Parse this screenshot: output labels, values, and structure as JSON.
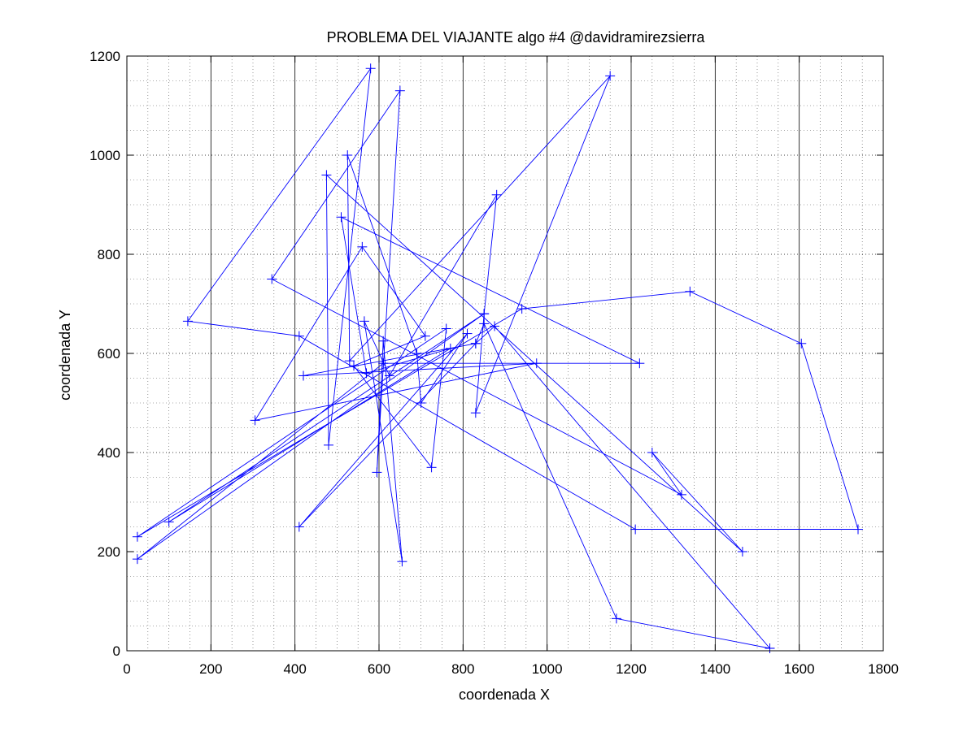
{
  "chart_data": {
    "type": "line",
    "title": "PROBLEMA DEL VIAJANTE algo #4 @davidramirezsierra",
    "xlabel": "coordenada X",
    "ylabel": "coordenada Y",
    "xlim": [
      0,
      1800
    ],
    "ylim": [
      0,
      1200
    ],
    "xticks": [
      0,
      200,
      400,
      600,
      800,
      1000,
      1200,
      1400,
      1600,
      1800
    ],
    "yticks": [
      0,
      200,
      400,
      600,
      800,
      1000,
      1200
    ],
    "xtick_labels": [
      "0",
      "200",
      "400",
      "600",
      "800",
      "1000",
      "1200",
      "1400",
      "1600",
      "1800"
    ],
    "ytick_labels": [
      "0",
      "200",
      "400",
      "600",
      "800",
      "1000",
      "1200"
    ],
    "grid": {
      "major": true,
      "minor": true
    },
    "marker": "+",
    "series": [
      {
        "color": "#0000ff",
        "points": [
          [
            1530,
            5
          ],
          [
            1165,
            65
          ],
          [
            850,
            660
          ],
          [
            830,
            620
          ],
          [
            420,
            555
          ],
          [
            975,
            580
          ],
          [
            305,
            465
          ],
          [
            560,
            815
          ],
          [
            710,
            635
          ],
          [
            540,
            575
          ],
          [
            725,
            370
          ],
          [
            760,
            650
          ],
          [
            25,
            230
          ],
          [
            940,
            690
          ],
          [
            1340,
            725
          ],
          [
            1605,
            620
          ],
          [
            1740,
            245
          ],
          [
            1210,
            245
          ],
          [
            410,
            635
          ],
          [
            145,
            665
          ],
          [
            580,
            1175
          ],
          [
            480,
            415
          ],
          [
            475,
            960
          ],
          [
            1465,
            200
          ],
          [
            1250,
            400
          ],
          [
            1320,
            315
          ],
          [
            345,
            750
          ],
          [
            650,
            1130
          ],
          [
            595,
            360
          ],
          [
            610,
            625
          ],
          [
            655,
            180
          ],
          [
            565,
            665
          ],
          [
            625,
            555
          ],
          [
            880,
            920
          ],
          [
            850,
            680
          ],
          [
            25,
            185
          ],
          [
            610,
            580
          ],
          [
            1220,
            580
          ],
          [
            510,
            875
          ],
          [
            570,
            560
          ],
          [
            770,
            610
          ],
          [
            100,
            260
          ],
          [
            850,
            680
          ],
          [
            830,
            480
          ],
          [
            1150,
            1160
          ],
          [
            530,
            585
          ],
          [
            525,
            1000
          ],
          [
            690,
            600
          ],
          [
            700,
            500
          ],
          [
            810,
            640
          ],
          [
            410,
            250
          ],
          [
            830,
            620
          ],
          [
            875,
            655
          ],
          [
            1530,
            5
          ]
        ]
      }
    ]
  }
}
